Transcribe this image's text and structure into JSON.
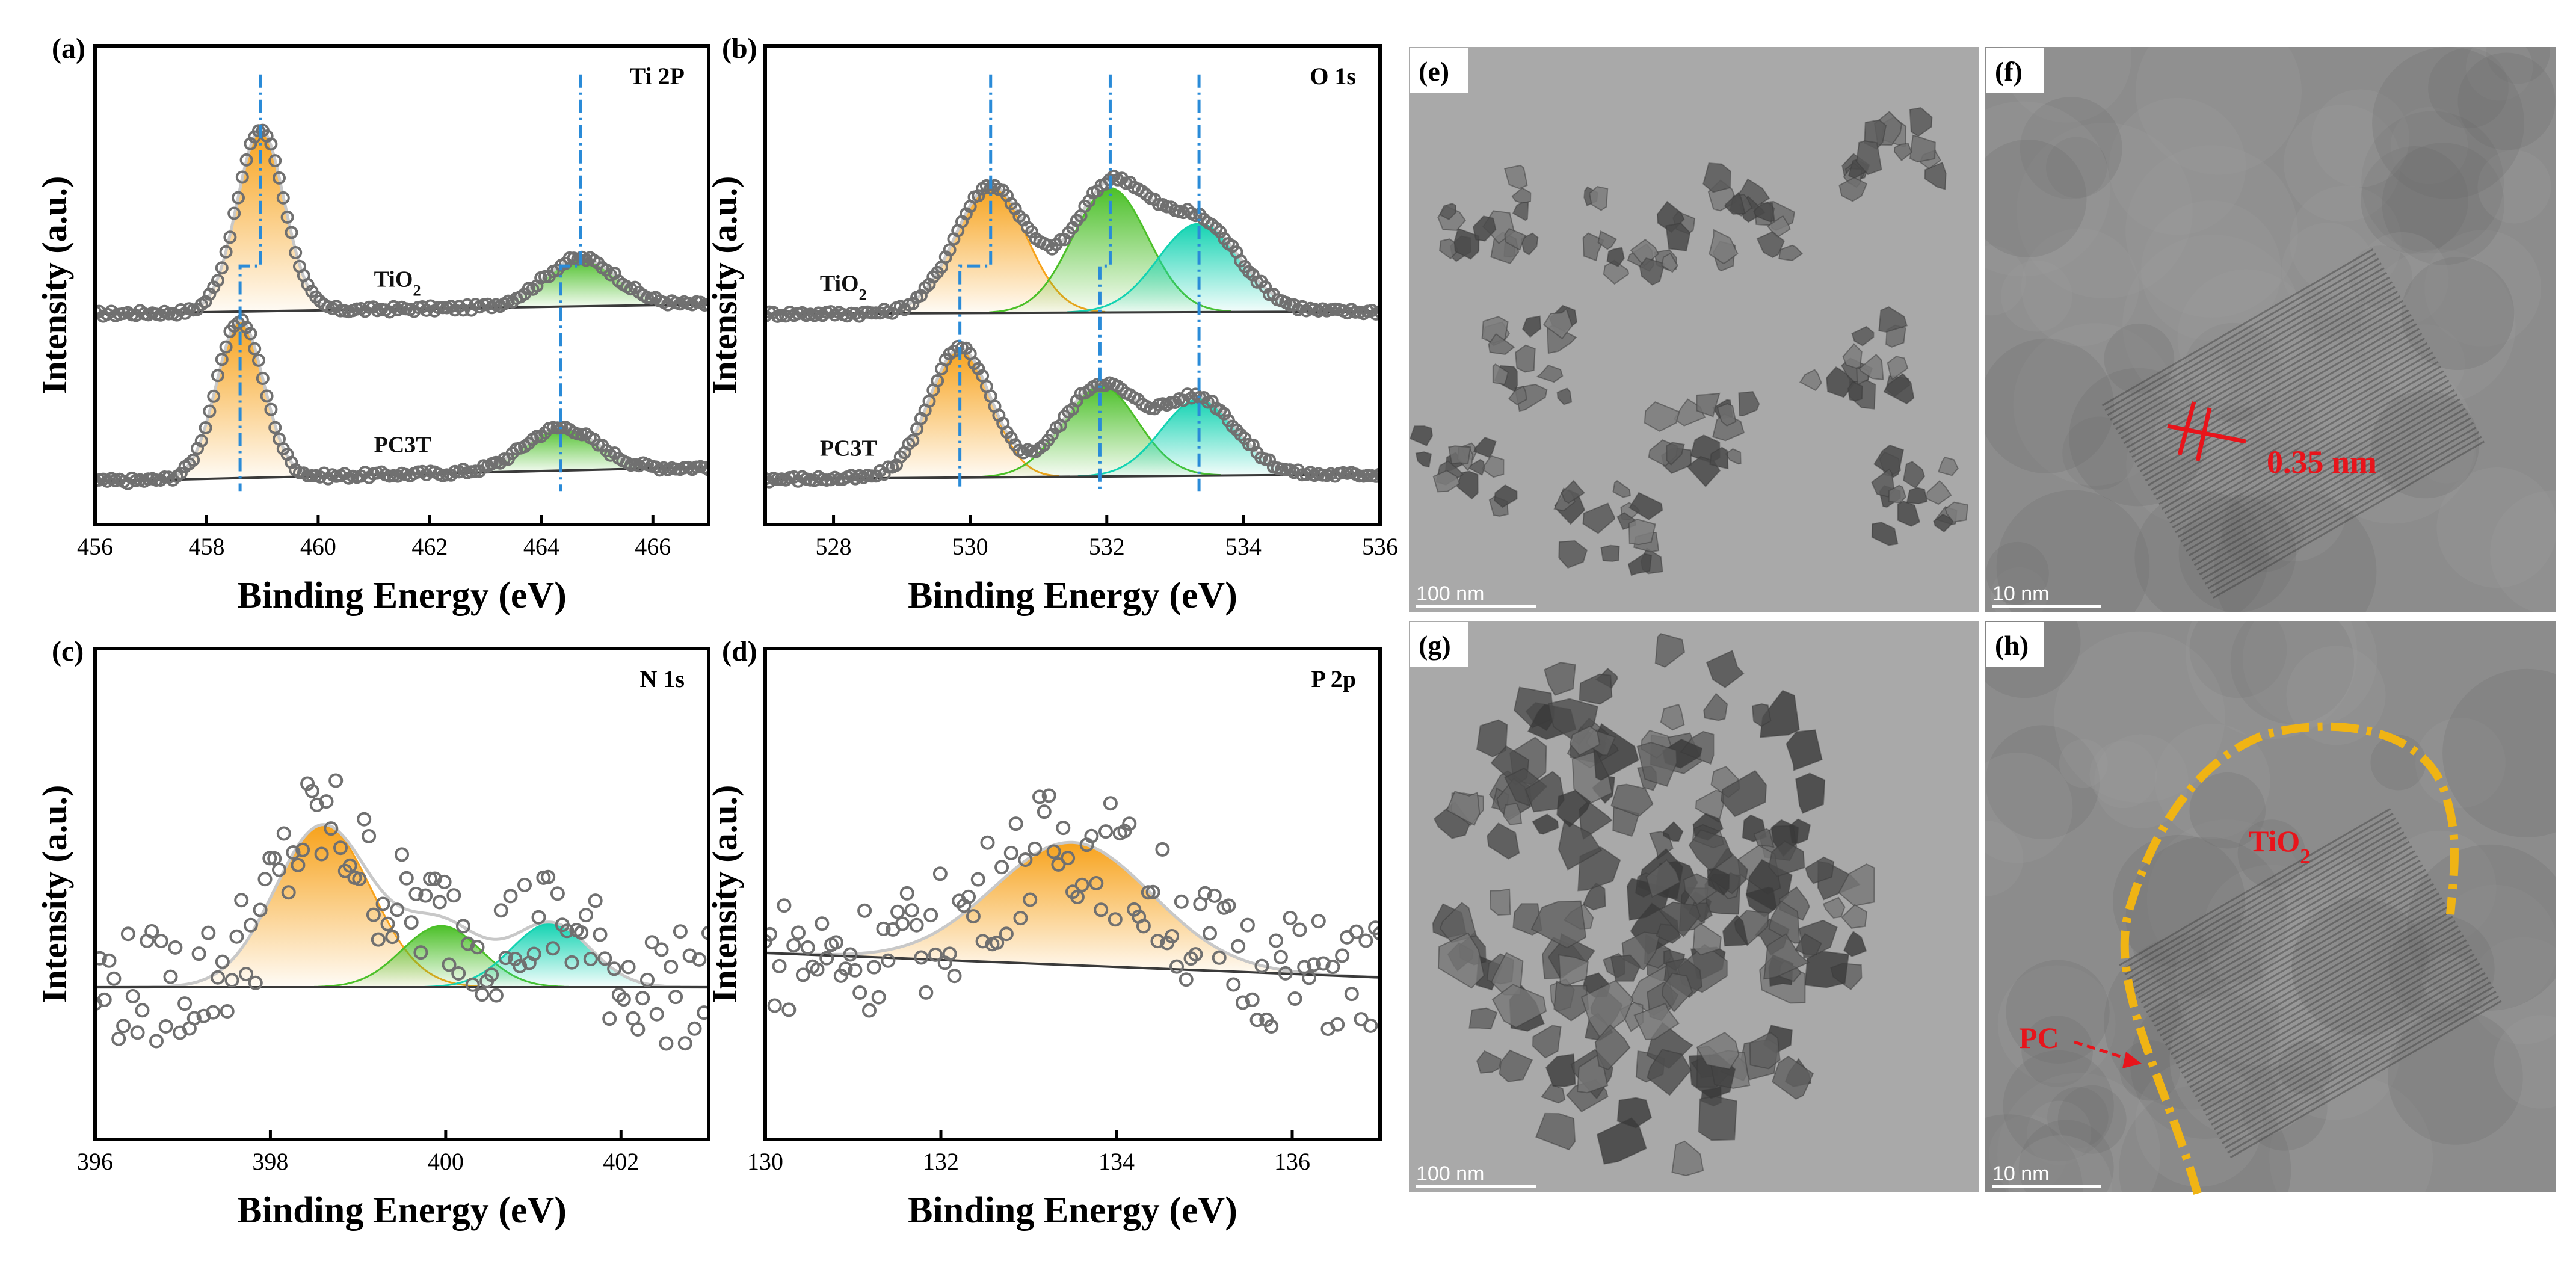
{
  "colors": {
    "orange": "#f7a21b",
    "green": "#4cc029",
    "cyan": "#13d3b2",
    "data_marker": "#707070",
    "fit_line": "#c8c8c8",
    "baseline": "#3a3a3a",
    "guide": "#2a8bd8",
    "annotation_red": "#e8141b",
    "outline_yellow": "#f0b414"
  },
  "chart_data": [
    {
      "panel": "(a)",
      "type": "line",
      "title": "Ti 2P",
      "xlabel": "Binding Energy (eV)",
      "ylabel": "Intensity (a.u.)",
      "xlim": [
        456,
        467
      ],
      "ylim": [
        0,
        10
      ],
      "xticks": [
        456,
        458,
        460,
        462,
        464,
        466
      ],
      "xtick_labels": [
        "456",
        "458",
        "460",
        "462",
        "464",
        "466"
      ],
      "markers": "open circles",
      "guide_lines": [
        [
          458.97,
          458.6
        ],
        [
          464.7,
          464.35
        ]
      ],
      "series": [
        {
          "name": "TiO2",
          "label_base": "TiO",
          "label_sub": "2",
          "label_x": 461.0,
          "baseline_start": 4.4,
          "baseline_end": 4.6,
          "peaks": [
            {
              "center": 458.97,
              "height": 3.8,
              "width": 0.42,
              "color": "orange"
            },
            {
              "center": 464.7,
              "height": 1.0,
              "width": 0.65,
              "color": "green"
            }
          ]
        },
        {
          "name": "PC3T",
          "label_base": "PC3T",
          "label_x": 461.0,
          "baseline_start": 0.9,
          "baseline_end": 1.2,
          "peaks": [
            {
              "center": 458.6,
              "height": 3.3,
              "width": 0.42,
              "color": "orange"
            },
            {
              "center": 464.35,
              "height": 0.9,
              "width": 0.65,
              "color": "green"
            }
          ]
        }
      ]
    },
    {
      "panel": "(b)",
      "type": "line",
      "title": "O 1s",
      "xlabel": "Binding Energy (eV)",
      "ylabel": "Intensity (a.u.)",
      "xlim": [
        527,
        536
      ],
      "ylim": [
        0,
        10
      ],
      "xticks": [
        528,
        530,
        532,
        534,
        536
      ],
      "xtick_labels": [
        "528",
        "530",
        "532",
        "534",
        "536"
      ],
      "markers": "open circles",
      "guide_lines": [
        [
          530.3,
          529.85
        ],
        [
          532.05,
          531.9
        ],
        [
          533.35,
          533.35
        ]
      ],
      "series": [
        {
          "name": "TiO2",
          "label_base": "TiO",
          "label_sub": "2",
          "label_x": 527.8,
          "baseline_start": 4.4,
          "baseline_end": 4.45,
          "peaks": [
            {
              "center": 530.3,
              "height": 2.65,
              "width": 0.52,
              "color": "orange"
            },
            {
              "center": 532.05,
              "height": 2.6,
              "width": 0.55,
              "color": "green"
            },
            {
              "center": 533.35,
              "height": 1.85,
              "width": 0.6,
              "color": "cyan"
            }
          ]
        },
        {
          "name": "PC3T",
          "label_base": "PC3T",
          "label_x": 527.8,
          "baseline_start": 0.95,
          "baseline_end": 1.05,
          "peaks": [
            {
              "center": 529.85,
              "height": 2.7,
              "width": 0.45,
              "color": "orange"
            },
            {
              "center": 531.9,
              "height": 1.9,
              "width": 0.55,
              "color": "green"
            },
            {
              "center": 533.35,
              "height": 1.6,
              "width": 0.55,
              "color": "cyan"
            }
          ]
        }
      ]
    },
    {
      "panel": "(c)",
      "type": "scatter",
      "title": "N 1s",
      "xlabel": "Binding Energy (eV)",
      "ylabel": "Intensity (a.u.)",
      "xlim": [
        396,
        403
      ],
      "ylim": [
        0,
        10
      ],
      "xticks": [
        396,
        398,
        400,
        402
      ],
      "xtick_labels": [
        "396",
        "398",
        "400",
        "402"
      ],
      "markers": "open circles",
      "guide_lines": [],
      "series": [
        {
          "name": "N 1s",
          "baseline_start": 3.1,
          "baseline_end": 3.1,
          "peaks": [
            {
              "center": 398.6,
              "height": 3.3,
              "width": 0.55,
              "color": "orange"
            },
            {
              "center": 399.95,
              "height": 1.25,
              "width": 0.45,
              "color": "green"
            },
            {
              "center": 401.2,
              "height": 1.3,
              "width": 0.45,
              "color": "cyan"
            }
          ]
        }
      ]
    },
    {
      "panel": "(d)",
      "type": "scatter",
      "title": "P 2p",
      "xlabel": "Binding Energy (eV)",
      "ylabel": "Intensity (a.u.)",
      "xlim": [
        130,
        137
      ],
      "ylim": [
        0,
        10
      ],
      "xticks": [
        130,
        132,
        134,
        136
      ],
      "xtick_labels": [
        "130",
        "132",
        "134",
        "136"
      ],
      "markers": "open circles",
      "guide_lines": [],
      "series": [
        {
          "name": "P 2p",
          "baseline_start": 3.8,
          "baseline_end": 3.3,
          "peaks": [
            {
              "center": 133.5,
              "height": 2.5,
              "width": 0.9,
              "color": "orange"
            }
          ]
        }
      ]
    }
  ],
  "tem_panels": [
    {
      "label": "(e)",
      "scale_bar": "100 nm",
      "kind": "particles"
    },
    {
      "label": "(f)",
      "scale_bar": "10 nm",
      "kind": "lattice",
      "annotation": "0.35 nm"
    },
    {
      "label": "(g)",
      "scale_bar": "100 nm",
      "kind": "cluster"
    },
    {
      "label": "(h)",
      "scale_bar": "10 nm",
      "kind": "coating",
      "label_tio2_base": "TiO",
      "label_tio2_sub": "2",
      "label_pc": "PC"
    }
  ]
}
